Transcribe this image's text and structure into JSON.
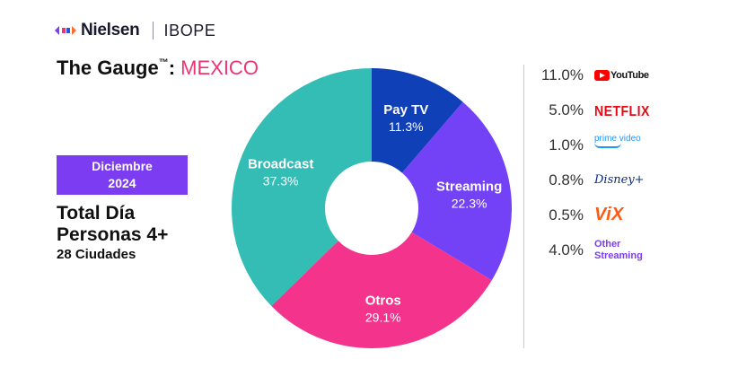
{
  "header": {
    "brand": "Nielsen",
    "partner": "IBOPE",
    "title_main": "The Gauge",
    "title_tm": "™",
    "title_sep": ": ",
    "title_country": "MEXICO"
  },
  "period": {
    "line1": "Diciembre",
    "line2": "2024"
  },
  "audience": {
    "line1": "Total Día",
    "line2": "Personas 4+",
    "line3": "28 Ciudades"
  },
  "colors": {
    "accent_pink": "#ef3473",
    "accent_purple": "#7b3cf2"
  },
  "chart_data": {
    "type": "pie",
    "donut": true,
    "slices": [
      {
        "name": "Pay TV",
        "value": 11.3,
        "label": "11.3%",
        "color": "#0f40b8"
      },
      {
        "name": "Streaming",
        "value": 22.3,
        "label": "22.3%",
        "color": "#7342f6"
      },
      {
        "name": "Otros",
        "value": 29.1,
        "label": "29.1%",
        "color": "#f4338d"
      },
      {
        "name": "Broadcast",
        "value": 37.3,
        "label": "37.3%",
        "color": "#33bdb5"
      }
    ],
    "streaming_breakdown": [
      {
        "value_label": "11.0%",
        "value": 11.0,
        "platform": "YouTube",
        "icon": "youtube-logo"
      },
      {
        "value_label": "5.0%",
        "value": 5.0,
        "platform": "NETFLIX",
        "icon": "netflix-logo"
      },
      {
        "value_label": "1.0%",
        "value": 1.0,
        "platform": "prime video",
        "icon": "prime-video-logo"
      },
      {
        "value_label": "0.8%",
        "value": 0.8,
        "platform": "Disney+",
        "icon": "disney-plus-logo"
      },
      {
        "value_label": "0.5%",
        "value": 0.5,
        "platform": "ViX",
        "icon": "vix-logo"
      },
      {
        "value_label": "4.0%",
        "value": 4.0,
        "platform": "Other Streaming",
        "icon": "other-streaming-text"
      }
    ]
  }
}
